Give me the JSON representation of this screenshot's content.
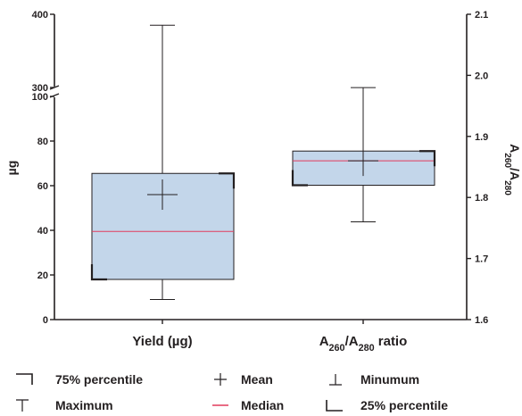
{
  "chart_data": {
    "type": "box",
    "categories": [
      "Yield (µg)",
      "A260/A280 ratio"
    ],
    "left_axis": {
      "label": "µg",
      "segments": [
        [
          0,
          100
        ],
        [
          300,
          400
        ]
      ],
      "ticks": [
        "0",
        "20",
        "40",
        "60",
        "80",
        "100",
        "300",
        "400"
      ]
    },
    "right_axis": {
      "label": "A260/A280",
      "range": [
        1.6,
        2.1
      ],
      "ticks": [
        "1.6",
        "1.7",
        "1.8",
        "1.9",
        "2.0",
        "2.1"
      ]
    },
    "boxes": [
      {
        "category": "Yield (µg)",
        "axis": "left",
        "min": 9,
        "q1": 18,
        "median": 39.5,
        "mean": 56,
        "q3": 65.5,
        "max": 385
      },
      {
        "category": "A260/A280 ratio",
        "axis": "right",
        "min": 1.76,
        "q1": 1.82,
        "median": 1.86,
        "mean": 1.86,
        "q3": 1.876,
        "max": 1.98
      }
    ],
    "legend": [
      {
        "symbol": "q3-corner",
        "label": "75% percentile"
      },
      {
        "symbol": "mean-cross",
        "label": "Mean"
      },
      {
        "symbol": "min-mark",
        "label": "Minumum"
      },
      {
        "symbol": "max-mark",
        "label": "Maximum"
      },
      {
        "symbol": "median-line",
        "label": "Median"
      },
      {
        "symbol": "q1-corner",
        "label": "25% percentile"
      }
    ],
    "colors": {
      "box_fill": "#c3d6ea",
      "median": "#e23b5c",
      "ink": "#231f20"
    }
  }
}
